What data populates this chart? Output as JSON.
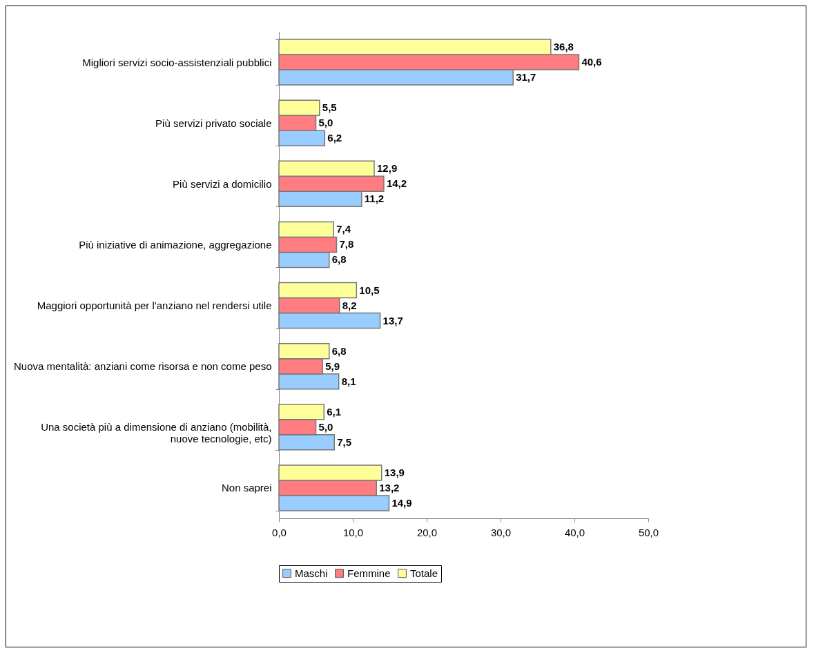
{
  "chart_data": {
    "type": "bar",
    "orientation": "horizontal",
    "categories": [
      "Migliori servizi socio-assistenziali pubblici",
      "Più servizi privato sociale",
      "Più servizi a domicilio",
      "Più iniziative di animazione, aggregazione",
      "Maggiori opportunità per l'anziano nel rendersi utile",
      "Nuova mentalità: anziani come risorsa e non come peso",
      "Una società più a dimensione di anziano (mobilità, nuove tecnologie, etc)",
      "Non saprei"
    ],
    "series": [
      {
        "name": "Maschi",
        "color": "#99ccff",
        "values": [
          31.7,
          6.2,
          11.2,
          6.8,
          13.7,
          8.1,
          7.5,
          14.9
        ],
        "value_labels": [
          "31,7",
          "6,2",
          "11,2",
          "6,8",
          "13,7",
          "8,1",
          "7,5",
          "14,9"
        ]
      },
      {
        "name": "Femmine",
        "color": "#ff7c80",
        "values": [
          40.6,
          5.0,
          14.2,
          7.8,
          8.2,
          5.9,
          5.0,
          13.2
        ],
        "value_labels": [
          "40,6",
          "5,0",
          "14,2",
          "7,8",
          "8,2",
          "5,9",
          "5,0",
          "13,2"
        ]
      },
      {
        "name": "Totale",
        "color": "#ffff99",
        "values": [
          36.8,
          5.5,
          12.9,
          7.4,
          10.5,
          6.8,
          6.1,
          13.9
        ],
        "value_labels": [
          "36,8",
          "5,5",
          "12,9",
          "7,4",
          "10,5",
          "6,8",
          "6,1",
          "13,9"
        ]
      }
    ],
    "xlim": [
      0,
      50
    ],
    "xticks": [
      {
        "value": 0,
        "label": "0,0"
      },
      {
        "value": 10,
        "label": "10,0"
      },
      {
        "value": 20,
        "label": "20,0"
      },
      {
        "value": 30,
        "label": "30,0"
      },
      {
        "value": 40,
        "label": "40,0"
      },
      {
        "value": 50,
        "label": "50,0"
      }
    ],
    "legend": "bottom",
    "grid": false
  }
}
